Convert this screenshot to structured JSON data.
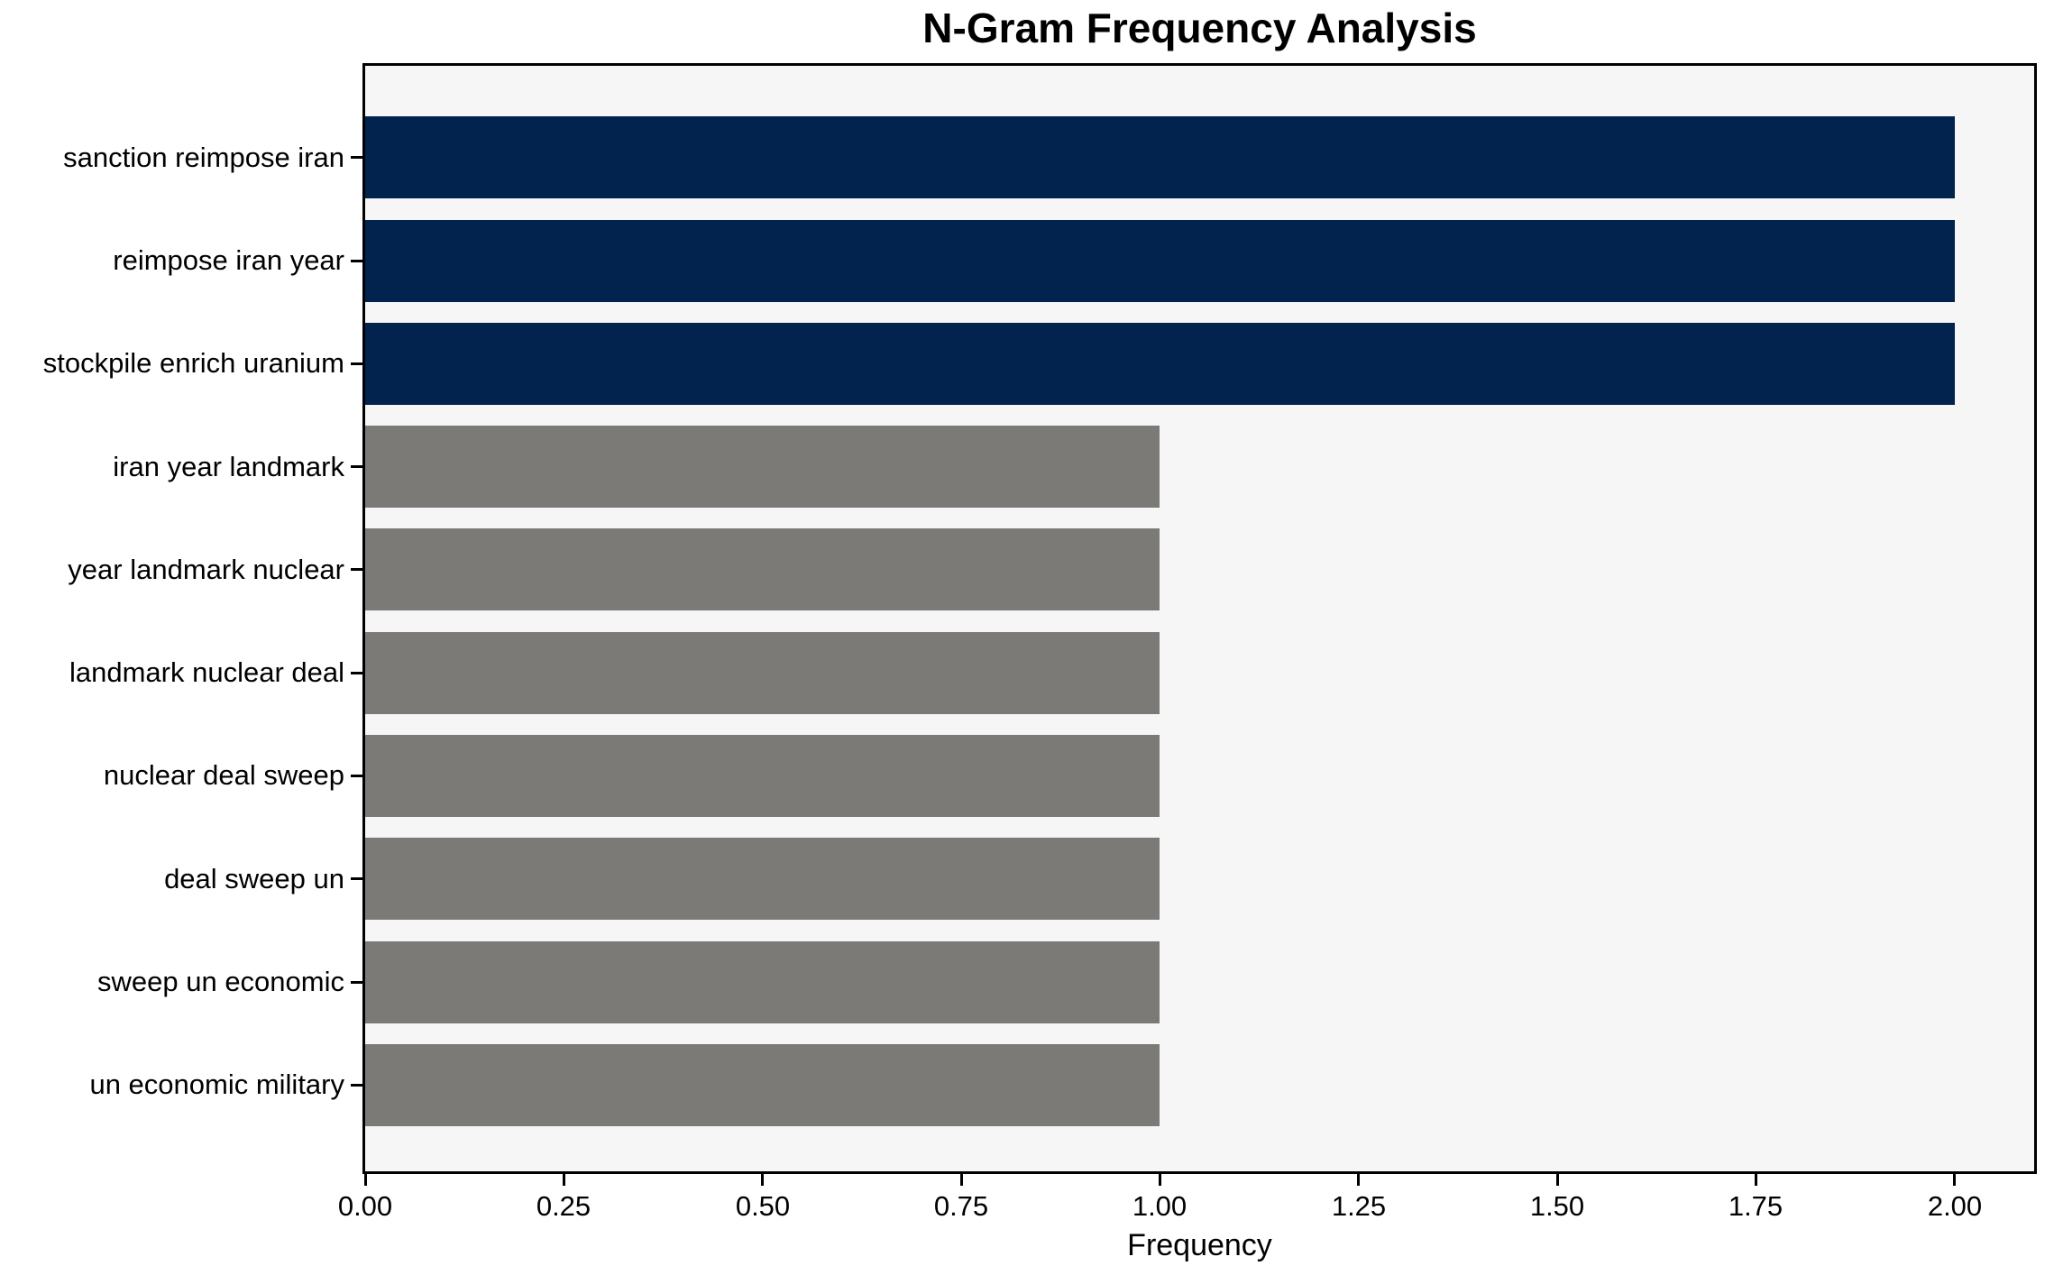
{
  "chart_data": {
    "type": "bar",
    "orientation": "horizontal",
    "title": "N-Gram Frequency Analysis",
    "xlabel": "Frequency",
    "ylabel": "",
    "categories": [
      "sanction reimpose iran",
      "reimpose iran year",
      "stockpile enrich uranium",
      "iran year landmark",
      "year landmark nuclear",
      "landmark nuclear deal",
      "nuclear deal sweep",
      "deal sweep un",
      "sweep un economic",
      "un economic military"
    ],
    "values": [
      2,
      2,
      2,
      1,
      1,
      1,
      1,
      1,
      1,
      1
    ],
    "bar_colors": [
      "#02234e",
      "#02234e",
      "#02234e",
      "#7b7a77",
      "#7b7a77",
      "#7b7a77",
      "#7b7a77",
      "#7b7a77",
      "#7b7a77",
      "#7b7a77"
    ],
    "xlim": [
      0,
      2.1
    ],
    "x_ticks": {
      "values": [
        0,
        0.25,
        0.5,
        0.75,
        1.0,
        1.25,
        1.5,
        1.75,
        2.0
      ],
      "labels": [
        "0.00",
        "0.25",
        "0.50",
        "0.75",
        "1.00",
        "1.25",
        "1.50",
        "1.75",
        "2.00"
      ]
    },
    "grid": false,
    "legend": null,
    "styles": {
      "figure_bg": "#ffffff",
      "plot_bg": "#f6f6f7",
      "bar_highlight": "#02234e",
      "bar_default": "#7b7a77",
      "axis_color": "#000000"
    }
  }
}
